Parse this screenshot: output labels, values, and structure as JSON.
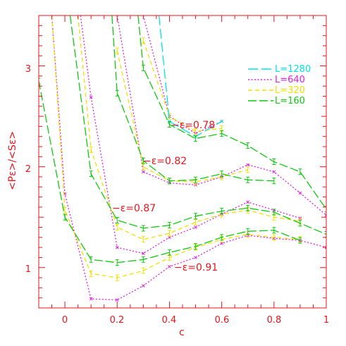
{
  "chart_data": {
    "type": "line",
    "xlabel": "c",
    "ylabel": "<Pε>/<Sε>",
    "xlim": [
      -0.1,
      1.0
    ],
    "ylim": [
      0.6,
      3.5
    ],
    "xticks": [
      "0",
      "0.2",
      "0.4",
      "0.6",
      "0.8",
      "1"
    ],
    "yticks": [
      "1",
      "2",
      "3"
    ],
    "legend": [
      "L=1280",
      "L=640",
      "L=320",
      "L=160"
    ],
    "legend_placement": "top-right",
    "axis_color": "#e8141c",
    "colors": {
      "L=1280": "#00e5e5",
      "L=640": "#e020e0",
      "L=320": "#f0e000",
      "L=160": "#10c810"
    },
    "annotations": [
      {
        "text": "−ε=0.78",
        "x": 0.44,
        "y": 2.56
      },
      {
        "text": "−ε=0.82",
        "x": 0.33,
        "y": 2.07
      },
      {
        "text": "−ε=0.87",
        "x": 0.18,
        "y": 1.63
      },
      {
        "text": "−ε=0.91",
        "x": 0.45,
        "y": 1.03
      }
    ],
    "series": [
      {
        "name": "L=1280",
        "group": "0.78",
        "x": [
          0.36,
          0.4,
          0.5,
          0.6
        ],
        "y": [
          3.5,
          2.45,
          2.3,
          2.45
        ]
      },
      {
        "name": "L=640",
        "group": "0.78",
        "x": [
          0.3,
          0.4,
          0.5,
          0.6
        ],
        "y": [
          3.5,
          2.5,
          2.33,
          2.45
        ]
      },
      {
        "name": "L=320",
        "group": "0.78",
        "x": [
          0.3,
          0.4,
          0.5,
          0.6
        ],
        "y": [
          3.25,
          2.5,
          2.35,
          2.38
        ]
      },
      {
        "name": "L=160",
        "group": "0.78",
        "x": [
          0.28,
          0.3,
          0.4,
          0.5,
          0.6,
          0.7,
          0.8,
          0.9,
          1.0
        ],
        "y": [
          3.5,
          2.98,
          2.42,
          2.28,
          2.33,
          2.21,
          2.05,
          1.95,
          1.58
        ]
      },
      {
        "name": "L=640",
        "group": "0.82",
        "x": [
          0.2,
          0.3,
          0.4,
          0.5,
          0.6,
          0.7,
          0.8,
          0.9,
          1.0
        ],
        "y": [
          3.5,
          1.95,
          1.84,
          1.82,
          1.9,
          2.02,
          1.95,
          1.74,
          1.52
        ]
      },
      {
        "name": "L=320",
        "group": "0.82",
        "x": [
          0.2,
          0.3,
          0.4,
          0.5,
          0.6,
          0.7
        ],
        "y": [
          3.15,
          2.0,
          1.86,
          1.85,
          1.9,
          1.97
        ]
      },
      {
        "name": "L=160",
        "group": "0.82",
        "x": [
          0.18,
          0.2,
          0.3,
          0.4,
          0.5,
          0.6,
          0.7,
          0.8
        ],
        "y": [
          3.5,
          2.73,
          2.06,
          1.86,
          1.87,
          1.93,
          1.87,
          1.86
        ]
      },
      {
        "name": "L=640",
        "group": "0.87",
        "x": [
          0.06,
          0.1,
          0.2,
          0.3,
          0.4,
          0.5,
          0.6,
          0.7,
          0.8,
          0.9
        ],
        "y": [
          3.5,
          2.69,
          1.2,
          1.14,
          1.3,
          1.4,
          1.53,
          1.65,
          1.57,
          1.49
        ]
      },
      {
        "name": "L=320",
        "group": "0.87",
        "x": [
          0.05,
          0.1,
          0.2,
          0.3,
          0.4,
          0.5,
          0.6,
          0.7,
          0.8,
          0.9
        ],
        "y": [
          3.5,
          2.17,
          1.4,
          1.28,
          1.34,
          1.45,
          1.53,
          1.57,
          1.5,
          1.46
        ]
      },
      {
        "name": "L=160",
        "group": "0.87",
        "x": [
          0.02,
          0.1,
          0.2,
          0.3,
          0.4,
          0.5,
          0.6,
          0.7,
          0.8,
          0.9,
          1.0
        ],
        "y": [
          3.5,
          1.93,
          1.47,
          1.39,
          1.42,
          1.51,
          1.56,
          1.59,
          1.55,
          1.44,
          1.33
        ]
      },
      {
        "name": "L=640",
        "group": "0.91",
        "x": [
          -0.05,
          0.0,
          0.1,
          0.2,
          0.3,
          0.4,
          0.5,
          0.6,
          0.7,
          0.8,
          0.9,
          1.0
        ],
        "y": [
          3.5,
          1.73,
          0.69,
          0.68,
          0.82,
          1.01,
          1.1,
          1.24,
          1.32,
          1.29,
          1.27,
          1.2
        ]
      },
      {
        "name": "L=320",
        "group": "0.91",
        "x": [
          -0.05,
          0.0,
          0.1,
          0.2,
          0.3,
          0.4,
          0.5,
          0.6,
          0.7,
          0.8,
          0.9
        ],
        "y": [
          3.5,
          1.57,
          0.94,
          0.9,
          0.97,
          1.1,
          1.2,
          1.28,
          1.33,
          1.3,
          1.28
        ]
      },
      {
        "name": "L=160",
        "group": "0.91",
        "x": [
          -0.1,
          0.0,
          0.1,
          0.2,
          0.3,
          0.4,
          0.5,
          0.6,
          0.7,
          0.8,
          0.9
        ],
        "y": [
          2.85,
          1.5,
          1.08,
          1.05,
          1.08,
          1.15,
          1.21,
          1.3,
          1.36,
          1.37,
          1.27
        ]
      }
    ]
  }
}
